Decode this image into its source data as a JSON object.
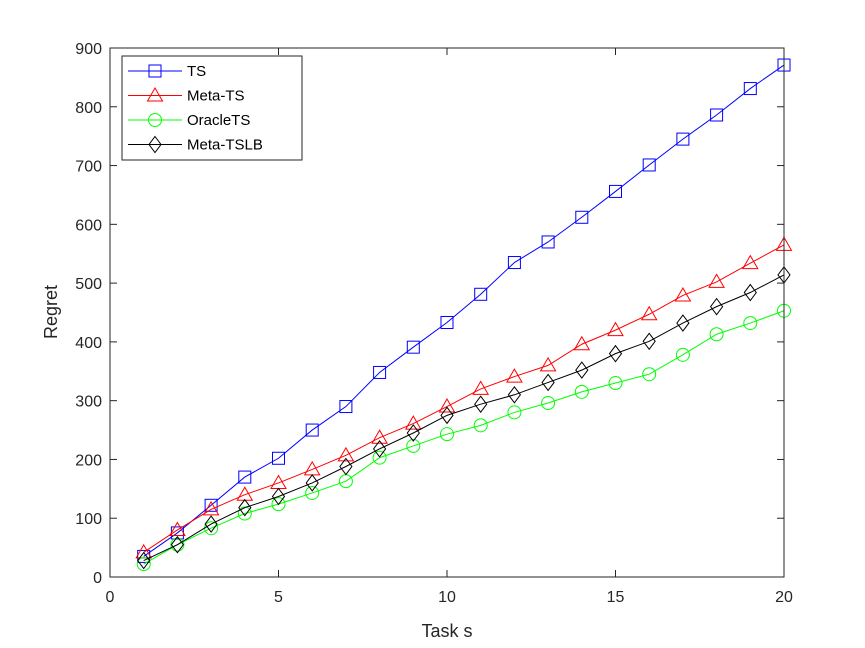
{
  "chart_data": {
    "type": "line",
    "title": "",
    "xlabel": "Task s",
    "ylabel": "Regret",
    "xlim": [
      0,
      20
    ],
    "ylim": [
      0,
      900
    ],
    "xticks": [
      0,
      5,
      10,
      15,
      20
    ],
    "yticks": [
      0,
      100,
      200,
      300,
      400,
      500,
      600,
      700,
      800,
      900
    ],
    "grid": false,
    "legend_position": "top-left",
    "x": [
      1,
      2,
      3,
      4,
      5,
      6,
      7,
      8,
      9,
      10,
      11,
      12,
      13,
      14,
      15,
      16,
      17,
      18,
      19,
      20
    ],
    "series": [
      {
        "name": "TS",
        "color": "#0000ff",
        "marker": "square",
        "values": [
          35,
          75,
          122,
          170,
          202,
          250,
          290,
          348,
          391,
          433,
          481,
          535,
          570,
          612,
          656,
          701,
          745,
          786,
          831,
          871
        ]
      },
      {
        "name": "Meta-TS",
        "color": "#ff0000",
        "marker": "triangle",
        "values": [
          42,
          80,
          115,
          140,
          160,
          183,
          207,
          237,
          261,
          290,
          320,
          341,
          360,
          396,
          420,
          447,
          479,
          502,
          534,
          565
        ]
      },
      {
        "name": "OracleTS",
        "color": "#00ff00",
        "marker": "circle",
        "values": [
          22,
          55,
          83,
          108,
          124,
          143,
          163,
          203,
          223,
          243,
          258,
          280,
          296,
          315,
          330,
          345,
          378,
          413,
          432,
          453
        ]
      },
      {
        "name": "Meta-TSLB",
        "color": "#000000",
        "marker": "diamond",
        "values": [
          28,
          55,
          90,
          118,
          137,
          160,
          188,
          218,
          245,
          275,
          294,
          310,
          331,
          352,
          380,
          401,
          432,
          460,
          484,
          514
        ]
      }
    ]
  }
}
